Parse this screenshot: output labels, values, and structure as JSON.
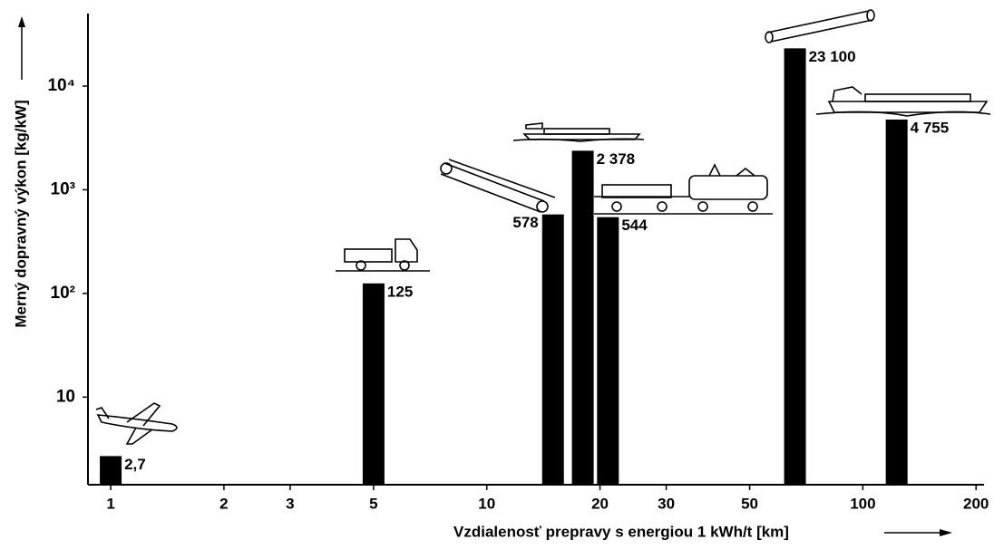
{
  "chart_data": {
    "type": "bar",
    "x_label": "Vzdialenosť prepravy s energiou 1 kWh/t  [km]",
    "y_label": "Merný dopravný výkon [kg/kW]",
    "x": [
      1,
      5,
      15,
      18,
      21,
      66,
      123
    ],
    "values": [
      2.7,
      125,
      578,
      2378,
      544,
      23100,
      4755
    ],
    "value_labels": [
      "2,7",
      "125",
      "578",
      "2 378",
      "544",
      "23 100",
      "4 755"
    ],
    "color": "#000000",
    "x_log": true,
    "y_log": true,
    "xlim": [
      0.87,
      210
    ],
    "xticks": [
      1,
      2,
      3,
      5,
      10,
      20,
      30,
      50,
      100,
      200
    ],
    "ylim": [
      1.43,
      50000
    ],
    "yticks": [
      10,
      {
        "value": 100,
        "label": "10²"
      },
      {
        "value": 1000,
        "label": "10³"
      },
      {
        "value": 10000,
        "label": "10⁴"
      }
    ]
  }
}
